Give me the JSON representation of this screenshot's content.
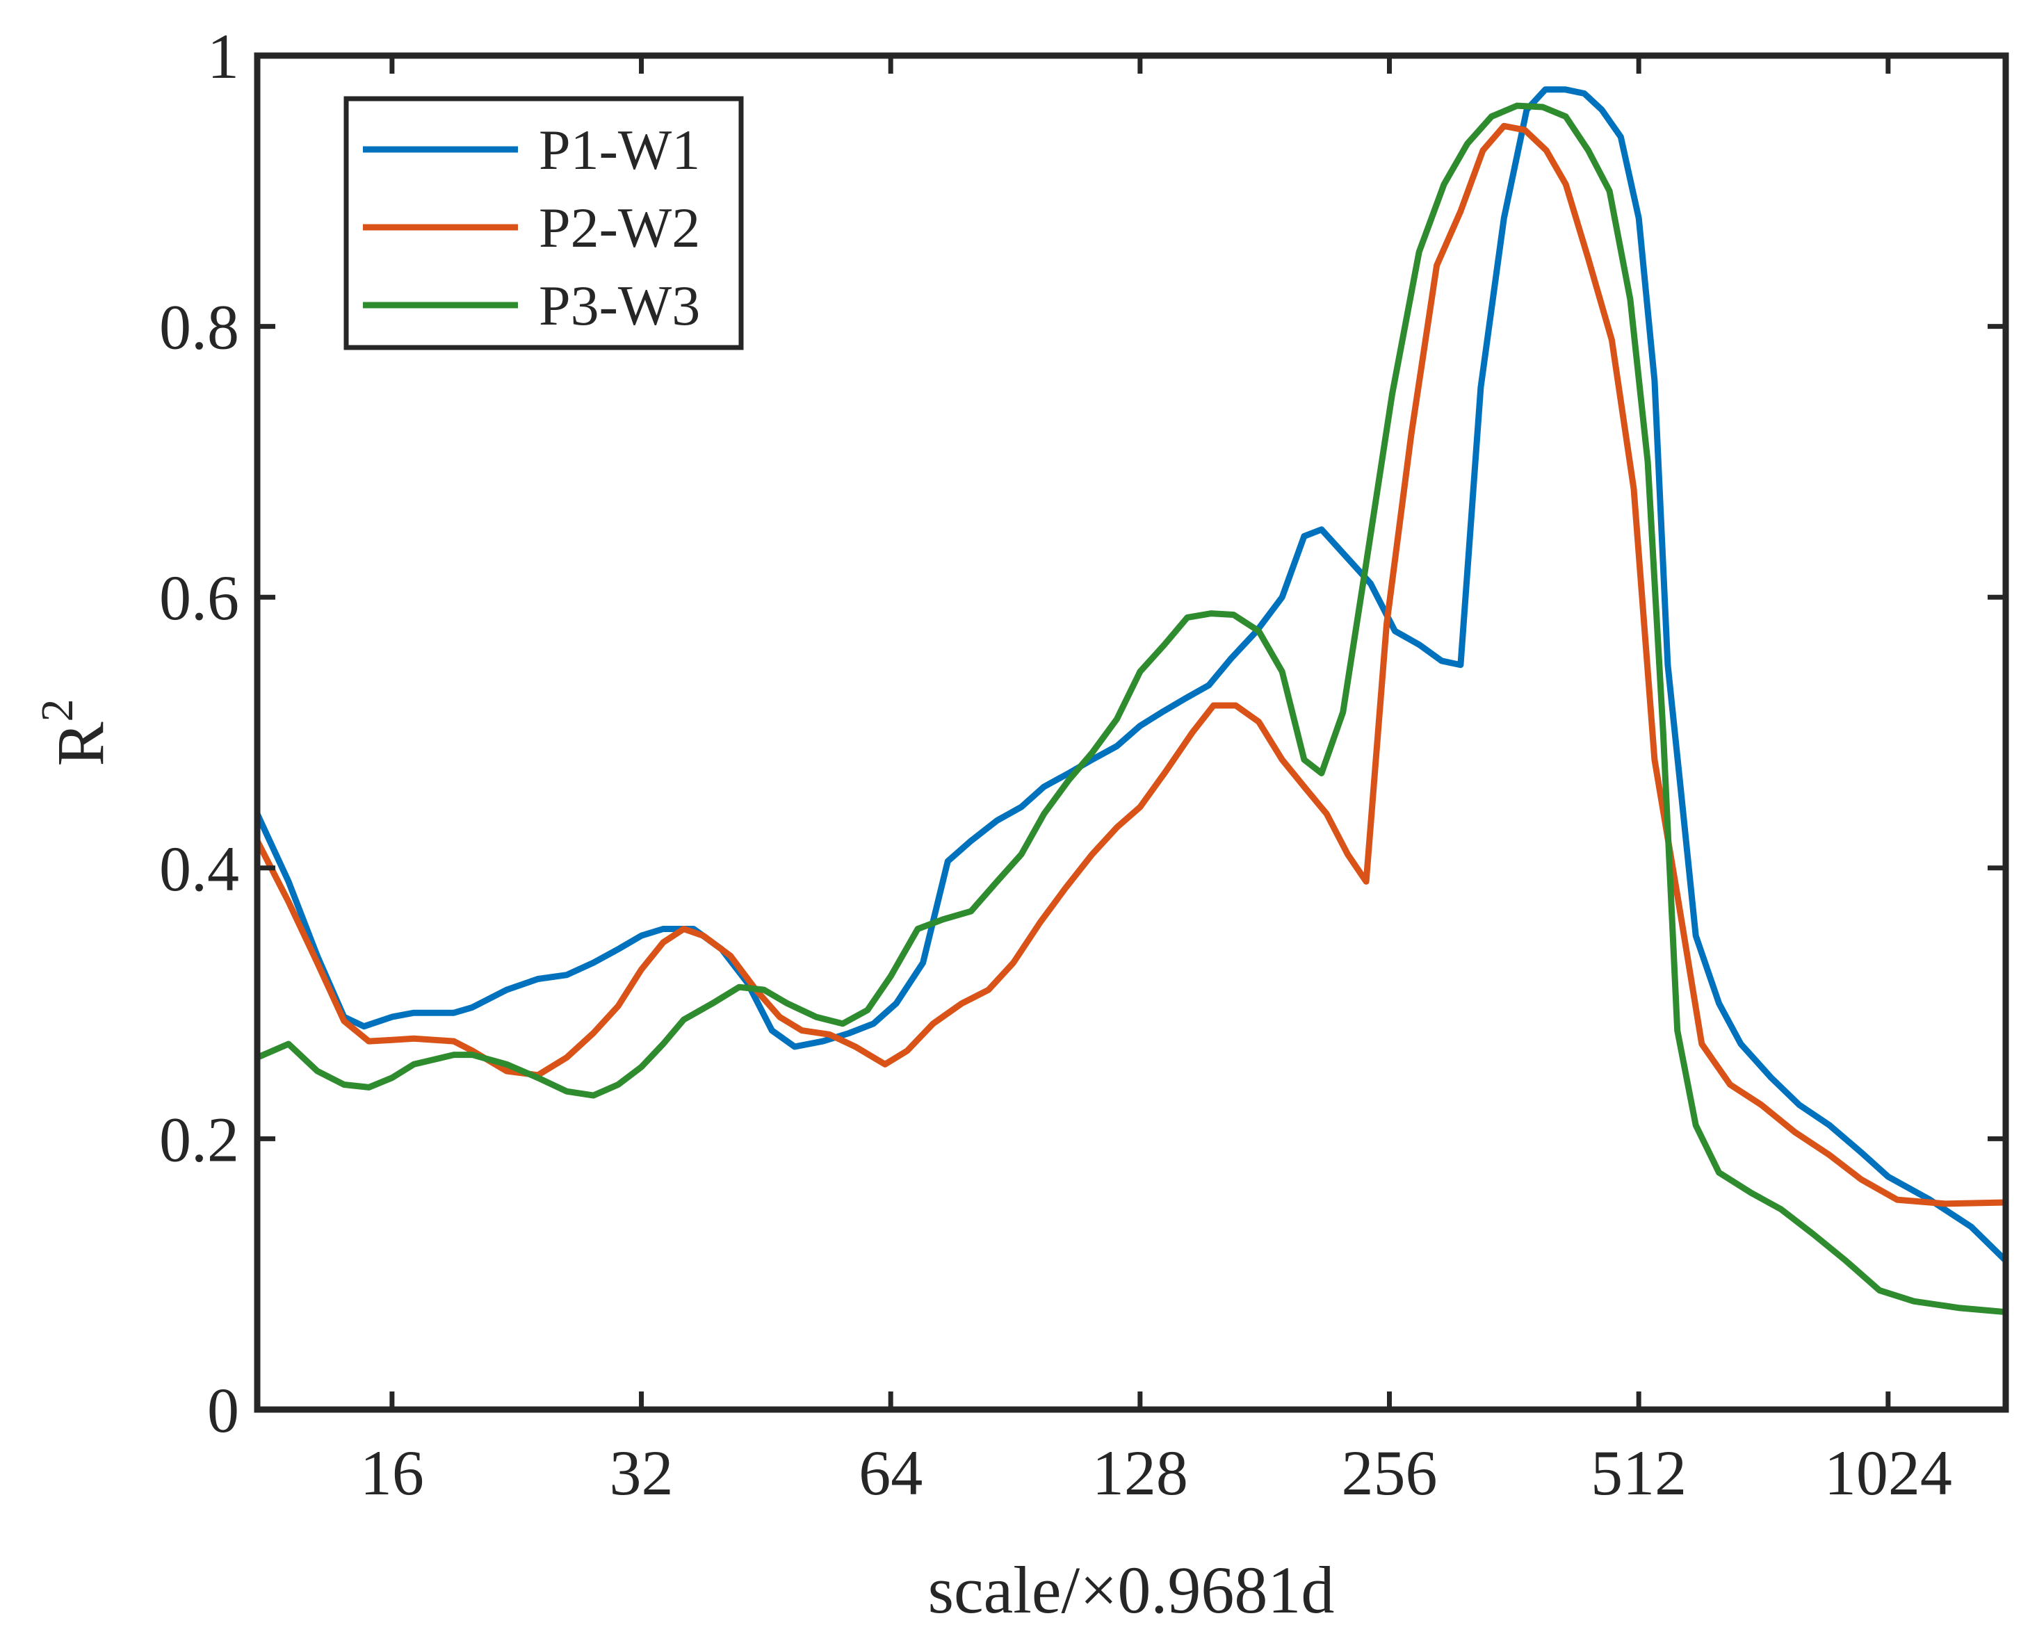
{
  "chart_data": {
    "type": "line",
    "title": "",
    "xlabel": "scale/×0.9681d",
    "ylabel": "R",
    "ylabel_superscript": "2",
    "xscale": "log2",
    "xlim": [
      11,
      1420
    ],
    "ylim": [
      0,
      1
    ],
    "x_ticks": [
      16,
      32,
      64,
      128,
      256,
      512,
      1024
    ],
    "x_tick_labels": [
      "16",
      "32",
      "64",
      "128",
      "256",
      "512",
      "1024"
    ],
    "y_ticks": [
      0,
      0.2,
      0.4,
      0.6,
      0.8,
      1
    ],
    "y_tick_labels": [
      "0",
      "0.2",
      "0.4",
      "0.6",
      "0.8",
      "1"
    ],
    "grid": false,
    "legend_position": "top-left",
    "series": [
      {
        "name": "P1-W1",
        "color": "#0072BD",
        "points": [
          [
            11,
            0.44
          ],
          [
            12,
            0.39
          ],
          [
            13,
            0.335
          ],
          [
            14,
            0.29
          ],
          [
            14.8,
            0.283
          ],
          [
            16,
            0.29
          ],
          [
            17,
            0.293
          ],
          [
            19,
            0.293
          ],
          [
            20,
            0.297
          ],
          [
            22,
            0.31
          ],
          [
            24,
            0.318
          ],
          [
            26,
            0.321
          ],
          [
            28,
            0.33
          ],
          [
            30,
            0.34
          ],
          [
            32,
            0.35
          ],
          [
            34,
            0.355
          ],
          [
            37,
            0.355
          ],
          [
            40,
            0.34
          ],
          [
            43,
            0.315
          ],
          [
            46,
            0.28
          ],
          [
            49,
            0.268
          ],
          [
            53,
            0.272
          ],
          [
            57,
            0.278
          ],
          [
            61,
            0.285
          ],
          [
            65,
            0.3
          ],
          [
            70,
            0.33
          ],
          [
            75,
            0.405
          ],
          [
            80,
            0.42
          ],
          [
            86,
            0.435
          ],
          [
            92,
            0.445
          ],
          [
            98,
            0.46
          ],
          [
            105,
            0.47
          ],
          [
            112,
            0.48
          ],
          [
            120,
            0.49
          ],
          [
            128,
            0.505
          ],
          [
            136,
            0.515
          ],
          [
            145,
            0.525
          ],
          [
            155,
            0.535
          ],
          [
            165,
            0.555
          ],
          [
            177,
            0.575
          ],
          [
            190,
            0.6
          ],
          [
            202,
            0.645
          ],
          [
            212,
            0.65
          ],
          [
            227,
            0.63
          ],
          [
            243,
            0.61
          ],
          [
            260,
            0.575
          ],
          [
            278,
            0.565
          ],
          [
            296,
            0.553
          ],
          [
            312,
            0.55
          ],
          [
            330,
            0.755
          ],
          [
            352,
            0.88
          ],
          [
            375,
            0.96
          ],
          [
            395,
            0.975
          ],
          [
            417,
            0.975
          ],
          [
            440,
            0.972
          ],
          [
            462,
            0.96
          ],
          [
            487,
            0.94
          ],
          [
            512,
            0.88
          ],
          [
            535,
            0.76
          ],
          [
            555,
            0.55
          ],
          [
            575,
            0.46
          ],
          [
            600,
            0.35
          ],
          [
            640,
            0.3
          ],
          [
            680,
            0.27
          ],
          [
            740,
            0.245
          ],
          [
            800,
            0.225
          ],
          [
            870,
            0.21
          ],
          [
            950,
            0.19
          ],
          [
            1024,
            0.172
          ],
          [
            1150,
            0.155
          ],
          [
            1290,
            0.135
          ],
          [
            1420,
            0.11
          ]
        ]
      },
      {
        "name": "P2-W2",
        "color": "#D95319",
        "points": [
          [
            11,
            0.42
          ],
          [
            12,
            0.375
          ],
          [
            13,
            0.33
          ],
          [
            14,
            0.287
          ],
          [
            15,
            0.272
          ],
          [
            16,
            0.273
          ],
          [
            17,
            0.274
          ],
          [
            19,
            0.272
          ],
          [
            20,
            0.265
          ],
          [
            22,
            0.25
          ],
          [
            24,
            0.247
          ],
          [
            26,
            0.26
          ],
          [
            28,
            0.278
          ],
          [
            30,
            0.298
          ],
          [
            32,
            0.325
          ],
          [
            34,
            0.345
          ],
          [
            36,
            0.355
          ],
          [
            38,
            0.35
          ],
          [
            41,
            0.335
          ],
          [
            44,
            0.31
          ],
          [
            47,
            0.29
          ],
          [
            50,
            0.28
          ],
          [
            54,
            0.277
          ],
          [
            58,
            0.268
          ],
          [
            63,
            0.255
          ],
          [
            67,
            0.265
          ],
          [
            72,
            0.285
          ],
          [
            78,
            0.3
          ],
          [
            84,
            0.31
          ],
          [
            90,
            0.33
          ],
          [
            97,
            0.36
          ],
          [
            104,
            0.385
          ],
          [
            112,
            0.41
          ],
          [
            120,
            0.43
          ],
          [
            128,
            0.445
          ],
          [
            137,
            0.47
          ],
          [
            148,
            0.5
          ],
          [
            157,
            0.52
          ],
          [
            167,
            0.52
          ],
          [
            178,
            0.508
          ],
          [
            190,
            0.48
          ],
          [
            202,
            0.46
          ],
          [
            215,
            0.44
          ],
          [
            228,
            0.41
          ],
          [
            240,
            0.39
          ],
          [
            254,
            0.58
          ],
          [
            272,
            0.72
          ],
          [
            292,
            0.845
          ],
          [
            312,
            0.885
          ],
          [
            332,
            0.93
          ],
          [
            352,
            0.948
          ],
          [
            373,
            0.945
          ],
          [
            396,
            0.93
          ],
          [
            418,
            0.905
          ],
          [
            445,
            0.85
          ],
          [
            475,
            0.79
          ],
          [
            505,
            0.68
          ],
          [
            535,
            0.48
          ],
          [
            570,
            0.38
          ],
          [
            610,
            0.27
          ],
          [
            660,
            0.24
          ],
          [
            720,
            0.225
          ],
          [
            790,
            0.205
          ],
          [
            870,
            0.188
          ],
          [
            950,
            0.17
          ],
          [
            1050,
            0.155
          ],
          [
            1200,
            0.152
          ],
          [
            1420,
            0.153
          ]
        ]
      },
      {
        "name": "P3-W3",
        "color": "#2E8B2E",
        "points": [
          [
            11,
            0.26
          ],
          [
            12,
            0.27
          ],
          [
            13,
            0.25
          ],
          [
            14,
            0.24
          ],
          [
            15,
            0.238
          ],
          [
            16,
            0.245
          ],
          [
            17,
            0.255
          ],
          [
            19,
            0.262
          ],
          [
            20,
            0.262
          ],
          [
            22,
            0.255
          ],
          [
            24,
            0.245
          ],
          [
            26,
            0.235
          ],
          [
            28,
            0.232
          ],
          [
            30,
            0.24
          ],
          [
            32,
            0.253
          ],
          [
            34,
            0.27
          ],
          [
            36,
            0.288
          ],
          [
            39,
            0.3
          ],
          [
            42,
            0.312
          ],
          [
            45,
            0.31
          ],
          [
            48,
            0.3
          ],
          [
            52,
            0.29
          ],
          [
            56,
            0.285
          ],
          [
            60,
            0.295
          ],
          [
            64,
            0.32
          ],
          [
            69,
            0.355
          ],
          [
            74,
            0.362
          ],
          [
            80,
            0.368
          ],
          [
            86,
            0.39
          ],
          [
            92,
            0.41
          ],
          [
            98,
            0.44
          ],
          [
            105,
            0.465
          ],
          [
            112,
            0.485
          ],
          [
            120,
            0.51
          ],
          [
            128,
            0.545
          ],
          [
            137,
            0.565
          ],
          [
            146,
            0.585
          ],
          [
            156,
            0.588
          ],
          [
            166,
            0.587
          ],
          [
            178,
            0.575
          ],
          [
            190,
            0.545
          ],
          [
            202,
            0.48
          ],
          [
            212,
            0.47
          ],
          [
            225,
            0.515
          ],
          [
            240,
            0.625
          ],
          [
            258,
            0.75
          ],
          [
            278,
            0.855
          ],
          [
            298,
            0.905
          ],
          [
            318,
            0.935
          ],
          [
            340,
            0.955
          ],
          [
            365,
            0.963
          ],
          [
            392,
            0.962
          ],
          [
            418,
            0.955
          ],
          [
            445,
            0.93
          ],
          [
            472,
            0.9
          ],
          [
            500,
            0.82
          ],
          [
            525,
            0.7
          ],
          [
            548,
            0.5
          ],
          [
            570,
            0.28
          ],
          [
            600,
            0.21
          ],
          [
            640,
            0.175
          ],
          [
            700,
            0.16
          ],
          [
            760,
            0.148
          ],
          [
            830,
            0.13
          ],
          [
            910,
            0.11
          ],
          [
            1000,
            0.088
          ],
          [
            1100,
            0.08
          ],
          [
            1250,
            0.075
          ],
          [
            1420,
            0.072
          ]
        ]
      }
    ]
  }
}
